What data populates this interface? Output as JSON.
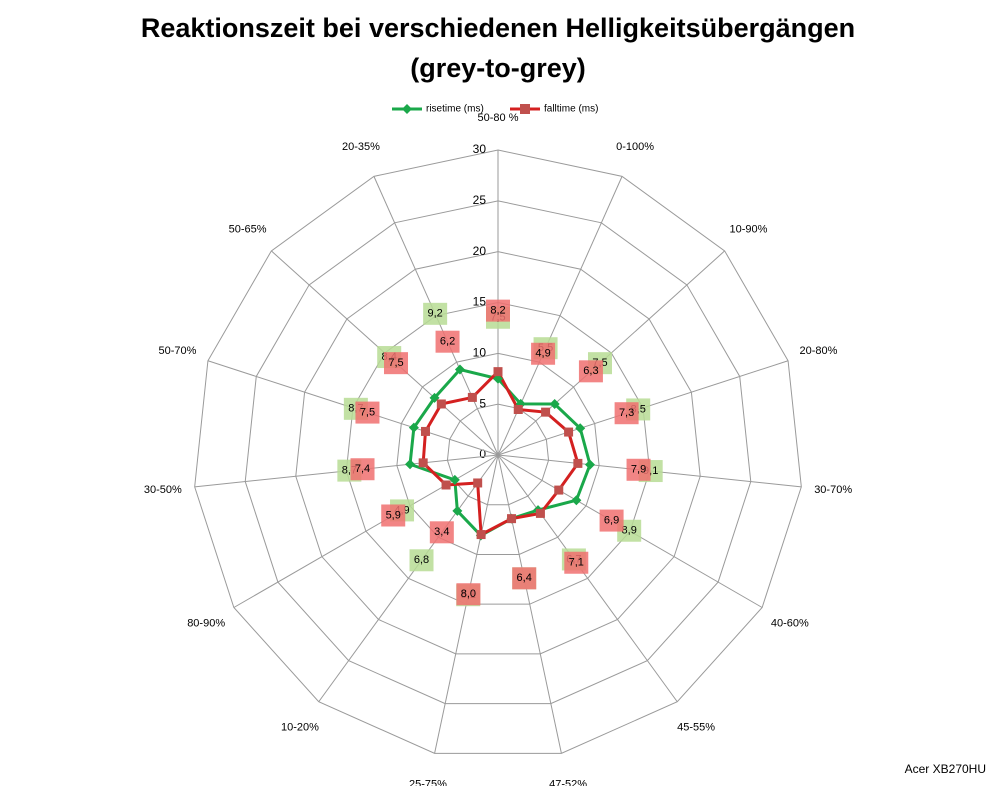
{
  "chart_data": {
    "type": "radar",
    "title": "Reaktionszeit bei verschiedenen Helligkeitsübergängen",
    "subtitle": "(grey-to-grey)",
    "source": "Acer XB270HU",
    "categories": [
      "50-80 %",
      "0-100%",
      "10-90%",
      "20-80%",
      "30-70%",
      "40-60%",
      "45-55%",
      "47-52%",
      "25-75%",
      "10-20%",
      "80-90%",
      "30-50%",
      "50-70%",
      "50-65%",
      "20-35%"
    ],
    "series": [
      {
        "name": "risetime (ms)",
        "color": "#1aa84a",
        "label_color": "#b7dc94",
        "values": [
          7.5,
          5.5,
          7.5,
          8.5,
          9.1,
          8.9,
          6.7,
          6.4,
          8.1,
          6.8,
          4.9,
          8.7,
          8.7,
          8.4,
          9.2
        ],
        "value_labels": [
          "7,5",
          "5,5",
          "7,5",
          "8,5",
          "9,1",
          "8,9",
          "6,7",
          "6,4",
          "8,1",
          "6,8",
          "4,9",
          "8,7",
          "8,7",
          "8,4",
          "9,2"
        ]
      },
      {
        "name": "falltime (ms)",
        "color": "#d42020",
        "label_color": "#f07070",
        "values": [
          8.2,
          4.9,
          6.3,
          7.3,
          7.9,
          6.9,
          7.1,
          6.4,
          8.0,
          3.4,
          5.9,
          7.4,
          7.5,
          7.5,
          6.2
        ],
        "value_labels": [
          "8,2",
          "4,9",
          "6,3",
          "7,3",
          "7,9",
          "6,9",
          "7,1",
          "6,4",
          "8,0",
          "3,4",
          "5,9",
          "7,4",
          "7,5",
          "7,5",
          "6,2"
        ]
      }
    ],
    "ylim": [
      0,
      30
    ],
    "yticks": [
      0,
      5,
      10,
      15,
      20,
      25,
      30
    ],
    "legend": "top"
  }
}
